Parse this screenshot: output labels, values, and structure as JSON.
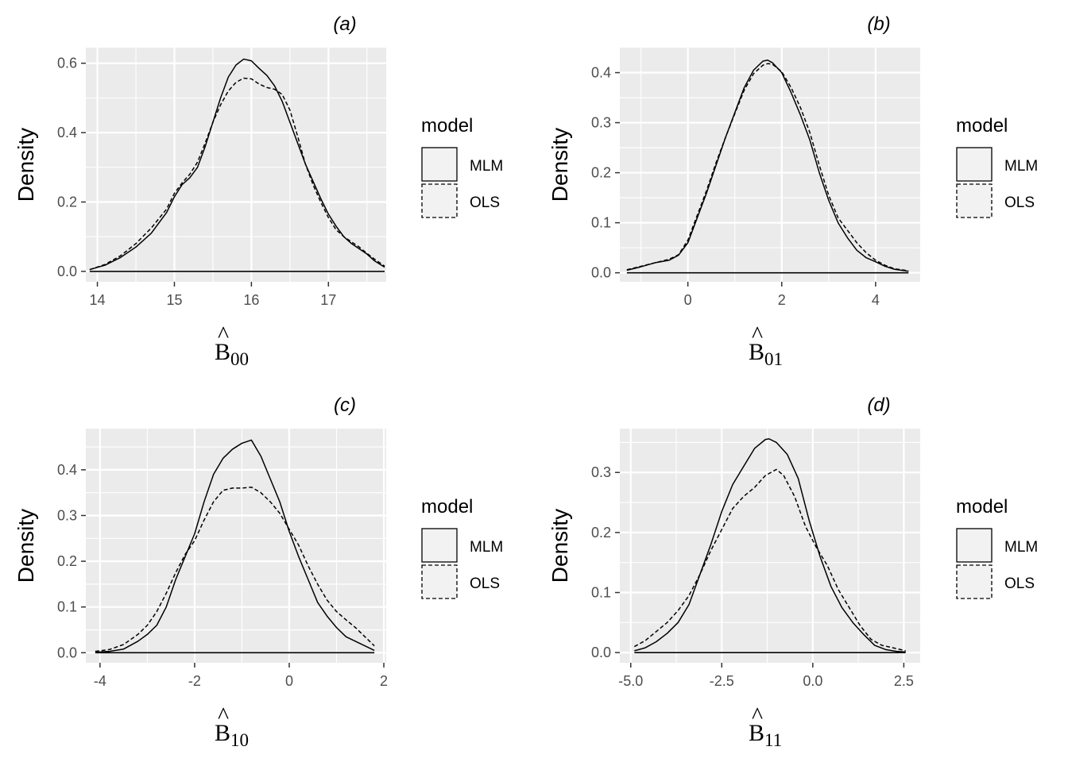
{
  "chart_data": [
    {
      "type": "line",
      "panel_label": "(a)",
      "ylabel": "Density",
      "xlabel_base": "B",
      "xlabel_hat": "^",
      "xlabel_subscript": "00",
      "xlim": [
        13.85,
        17.75
      ],
      "ylim": [
        -0.03,
        0.645
      ],
      "xticks": [
        14,
        15,
        16,
        17
      ],
      "xtick_labels": [
        "14",
        "15",
        "16",
        "17"
      ],
      "yticks": [
        0.0,
        0.2,
        0.4,
        0.6
      ],
      "ytick_labels": [
        "0.0",
        "0.2",
        "0.4",
        "0.6"
      ],
      "grid": true,
      "legend": {
        "title": "model",
        "position": "right",
        "entries": [
          "MLM",
          "OLS"
        ]
      },
      "series": [
        {
          "name": "MLM",
          "linestyle": "solid",
          "x": [
            13.9,
            14.1,
            14.3,
            14.5,
            14.7,
            14.9,
            15.0,
            15.1,
            15.2,
            15.3,
            15.4,
            15.5,
            15.6,
            15.7,
            15.8,
            15.9,
            16.0,
            16.1,
            16.2,
            16.3,
            16.4,
            16.5,
            16.6,
            16.7,
            16.8,
            16.9,
            17.0,
            17.1,
            17.2,
            17.3,
            17.4,
            17.5,
            17.6,
            17.73
          ],
          "y": [
            0.005,
            0.018,
            0.04,
            0.07,
            0.11,
            0.17,
            0.215,
            0.25,
            0.27,
            0.3,
            0.36,
            0.43,
            0.5,
            0.56,
            0.595,
            0.612,
            0.607,
            0.585,
            0.565,
            0.535,
            0.49,
            0.43,
            0.37,
            0.31,
            0.26,
            0.21,
            0.165,
            0.13,
            0.1,
            0.08,
            0.065,
            0.05,
            0.03,
            0.012
          ]
        },
        {
          "name": "OLS",
          "linestyle": "dashed",
          "x": [
            13.9,
            14.1,
            14.3,
            14.5,
            14.7,
            14.9,
            15.0,
            15.1,
            15.2,
            15.3,
            15.4,
            15.5,
            15.6,
            15.7,
            15.8,
            15.9,
            16.0,
            16.1,
            16.2,
            16.3,
            16.4,
            16.5,
            16.6,
            16.7,
            16.8,
            16.9,
            17.0,
            17.1,
            17.2,
            17.3,
            17.4,
            17.5,
            17.6,
            17.73
          ],
          "y": [
            0.005,
            0.02,
            0.045,
            0.08,
            0.125,
            0.18,
            0.225,
            0.255,
            0.28,
            0.315,
            0.37,
            0.43,
            0.48,
            0.52,
            0.545,
            0.557,
            0.555,
            0.54,
            0.53,
            0.525,
            0.51,
            0.465,
            0.39,
            0.31,
            0.25,
            0.2,
            0.155,
            0.12,
            0.1,
            0.085,
            0.07,
            0.052,
            0.035,
            0.015
          ]
        }
      ]
    },
    {
      "type": "line",
      "panel_label": "(b)",
      "ylabel": "Density",
      "xlabel_base": "B",
      "xlabel_hat": "^",
      "xlabel_subscript": "01",
      "xlim": [
        -1.45,
        4.95
      ],
      "ylim": [
        -0.018,
        0.45
      ],
      "xticks": [
        0,
        2,
        4
      ],
      "xtick_labels": [
        "0",
        "2",
        "4"
      ],
      "yticks": [
        0.0,
        0.1,
        0.2,
        0.3,
        0.4
      ],
      "ytick_labels": [
        "0.0",
        "0.1",
        "0.2",
        "0.3",
        "0.4"
      ],
      "grid": true,
      "legend": {
        "title": "model",
        "position": "right",
        "entries": [
          "MLM",
          "OLS"
        ]
      },
      "series": [
        {
          "name": "MLM",
          "linestyle": "solid",
          "x": [
            -1.3,
            -1.0,
            -0.7,
            -0.4,
            -0.2,
            0.0,
            0.2,
            0.4,
            0.6,
            0.8,
            1.0,
            1.2,
            1.4,
            1.6,
            1.7,
            1.8,
            2.0,
            2.2,
            2.4,
            2.6,
            2.8,
            3.0,
            3.2,
            3.4,
            3.6,
            3.8,
            4.0,
            4.2,
            4.4,
            4.7
          ],
          "y": [
            0.005,
            0.012,
            0.02,
            0.025,
            0.035,
            0.06,
            0.11,
            0.16,
            0.215,
            0.27,
            0.32,
            0.37,
            0.405,
            0.423,
            0.425,
            0.42,
            0.4,
            0.36,
            0.315,
            0.265,
            0.2,
            0.145,
            0.1,
            0.07,
            0.045,
            0.03,
            0.022,
            0.013,
            0.007,
            0.003
          ]
        },
        {
          "name": "OLS",
          "linestyle": "dashed",
          "x": [
            -1.3,
            -1.0,
            -0.7,
            -0.4,
            -0.2,
            0.0,
            0.2,
            0.4,
            0.6,
            0.8,
            1.0,
            1.2,
            1.4,
            1.6,
            1.7,
            1.8,
            2.0,
            2.2,
            2.4,
            2.6,
            2.8,
            3.0,
            3.2,
            3.4,
            3.6,
            3.8,
            4.0,
            4.2,
            4.4,
            4.7
          ],
          "y": [
            0.006,
            0.013,
            0.02,
            0.027,
            0.036,
            0.065,
            0.115,
            0.165,
            0.22,
            0.27,
            0.318,
            0.365,
            0.398,
            0.415,
            0.418,
            0.417,
            0.402,
            0.37,
            0.33,
            0.28,
            0.215,
            0.155,
            0.11,
            0.085,
            0.06,
            0.04,
            0.025,
            0.015,
            0.008,
            0.004
          ]
        }
      ]
    },
    {
      "type": "line",
      "panel_label": "(c)",
      "ylabel": "Density",
      "xlabel_base": "B",
      "xlabel_hat": "^",
      "xlabel_subscript": "10",
      "xlim": [
        -4.3,
        2.05
      ],
      "ylim": [
        -0.022,
        0.49
      ],
      "xticks": [
        -4,
        -2,
        0,
        2
      ],
      "xtick_labels": [
        "-4",
        "-2",
        "0",
        "2"
      ],
      "yticks": [
        0.0,
        0.1,
        0.2,
        0.3,
        0.4
      ],
      "ytick_labels": [
        "0.0",
        "0.1",
        "0.2",
        "0.3",
        "0.4"
      ],
      "grid": true,
      "legend": {
        "title": "model",
        "position": "right",
        "entries": [
          "MLM",
          "OLS"
        ]
      },
      "series": [
        {
          "name": "MLM",
          "linestyle": "solid",
          "x": [
            -4.1,
            -3.8,
            -3.5,
            -3.2,
            -3.0,
            -2.8,
            -2.6,
            -2.4,
            -2.2,
            -2.0,
            -1.8,
            -1.6,
            -1.4,
            -1.2,
            -1.0,
            -0.8,
            -0.6,
            -0.4,
            -0.2,
            0.0,
            0.2,
            0.4,
            0.6,
            0.8,
            1.0,
            1.2,
            1.4,
            1.6,
            1.8
          ],
          "y": [
            0.001,
            0.003,
            0.008,
            0.025,
            0.04,
            0.06,
            0.1,
            0.16,
            0.21,
            0.26,
            0.33,
            0.39,
            0.425,
            0.445,
            0.458,
            0.465,
            0.43,
            0.38,
            0.33,
            0.265,
            0.21,
            0.16,
            0.11,
            0.08,
            0.055,
            0.035,
            0.025,
            0.015,
            0.005
          ]
        },
        {
          "name": "OLS",
          "linestyle": "dashed",
          "x": [
            -4.1,
            -3.8,
            -3.5,
            -3.2,
            -3.0,
            -2.8,
            -2.6,
            -2.4,
            -2.2,
            -2.0,
            -1.8,
            -1.6,
            -1.4,
            -1.2,
            -1.0,
            -0.8,
            -0.6,
            -0.4,
            -0.2,
            0.0,
            0.2,
            0.4,
            0.6,
            0.8,
            1.0,
            1.2,
            1.4,
            1.6,
            1.8
          ],
          "y": [
            0.003,
            0.007,
            0.018,
            0.04,
            0.06,
            0.09,
            0.13,
            0.175,
            0.215,
            0.245,
            0.29,
            0.33,
            0.355,
            0.36,
            0.36,
            0.362,
            0.35,
            0.33,
            0.305,
            0.27,
            0.235,
            0.19,
            0.15,
            0.115,
            0.09,
            0.072,
            0.055,
            0.035,
            0.015
          ]
        }
      ]
    },
    {
      "type": "line",
      "panel_label": "(d)",
      "ylabel": "Density",
      "xlabel_base": "B",
      "xlabel_hat": "^",
      "xlabel_subscript": "11",
      "xlim": [
        -5.3,
        2.95
      ],
      "ylim": [
        -0.017,
        0.373
      ],
      "xticks": [
        -5.0,
        -2.5,
        0.0,
        2.5
      ],
      "xtick_labels": [
        "-5.0",
        "-2.5",
        "0.0",
        "2.5"
      ],
      "yticks": [
        0.0,
        0.1,
        0.2,
        0.3
      ],
      "ytick_labels": [
        "0.0",
        "0.1",
        "0.2",
        "0.3"
      ],
      "grid": true,
      "legend": {
        "title": "model",
        "position": "right",
        "entries": [
          "MLM",
          "OLS"
        ]
      },
      "series": [
        {
          "name": "MLM",
          "linestyle": "solid",
          "x": [
            -4.9,
            -4.6,
            -4.3,
            -4.0,
            -3.7,
            -3.4,
            -3.1,
            -2.8,
            -2.5,
            -2.2,
            -1.9,
            -1.6,
            -1.3,
            -1.2,
            -1.0,
            -0.7,
            -0.4,
            -0.1,
            0.2,
            0.5,
            0.8,
            1.1,
            1.4,
            1.7,
            2.0,
            2.3,
            2.55
          ],
          "y": [
            0.003,
            0.008,
            0.018,
            0.032,
            0.05,
            0.08,
            0.13,
            0.18,
            0.235,
            0.28,
            0.31,
            0.34,
            0.355,
            0.356,
            0.35,
            0.33,
            0.29,
            0.22,
            0.16,
            0.11,
            0.075,
            0.05,
            0.03,
            0.012,
            0.005,
            0.002,
            0.001
          ]
        },
        {
          "name": "OLS",
          "linestyle": "dashed",
          "x": [
            -4.9,
            -4.6,
            -4.3,
            -4.0,
            -3.7,
            -3.4,
            -3.1,
            -2.8,
            -2.5,
            -2.2,
            -1.9,
            -1.6,
            -1.3,
            -1.0,
            -0.8,
            -0.5,
            -0.2,
            0.1,
            0.4,
            0.7,
            1.0,
            1.3,
            1.6,
            1.9,
            2.2,
            2.55
          ],
          "y": [
            0.01,
            0.02,
            0.035,
            0.05,
            0.07,
            0.095,
            0.13,
            0.17,
            0.205,
            0.24,
            0.26,
            0.275,
            0.295,
            0.305,
            0.295,
            0.26,
            0.21,
            0.175,
            0.145,
            0.105,
            0.075,
            0.045,
            0.022,
            0.012,
            0.008,
            0.003
          ]
        }
      ]
    }
  ]
}
